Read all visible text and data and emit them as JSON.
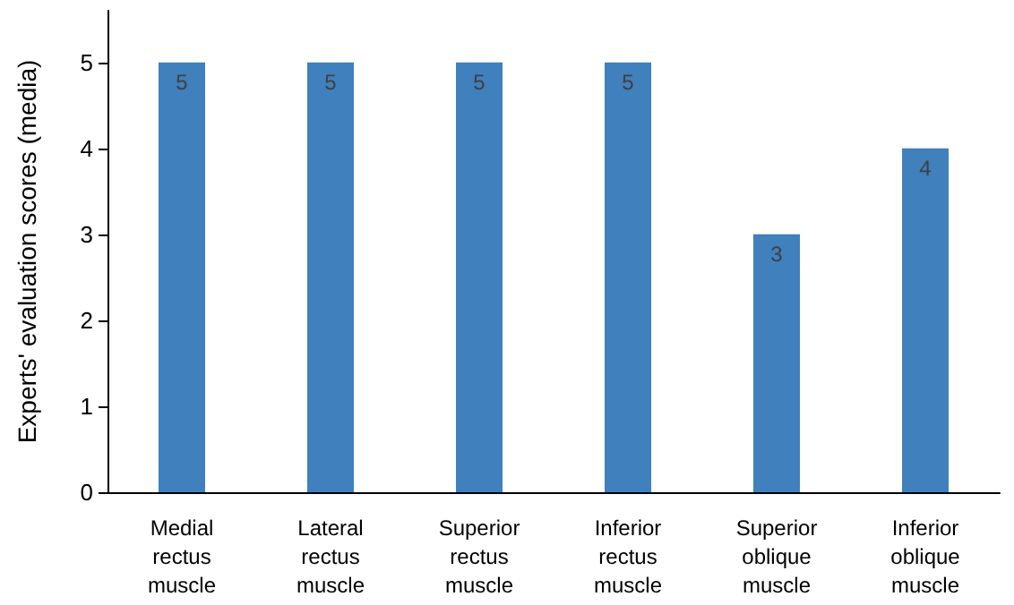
{
  "chart_data": {
    "type": "bar",
    "ylabel": "Experts' evaluation scores (media)",
    "categories": [
      "Medial rectus muscle",
      "Lateral rectus muscle",
      "Superior rectus muscle",
      "Inferior rectus muscle",
      "Superior oblique muscle",
      "Inferior oblique muscle"
    ],
    "values": [
      5,
      5,
      5,
      5,
      3,
      4
    ],
    "color": "#3f80bd",
    "ylim": [
      0,
      5.6
    ],
    "yticks": [
      0,
      1,
      2,
      3,
      4,
      5
    ],
    "grid": false,
    "data_labels": true
  }
}
